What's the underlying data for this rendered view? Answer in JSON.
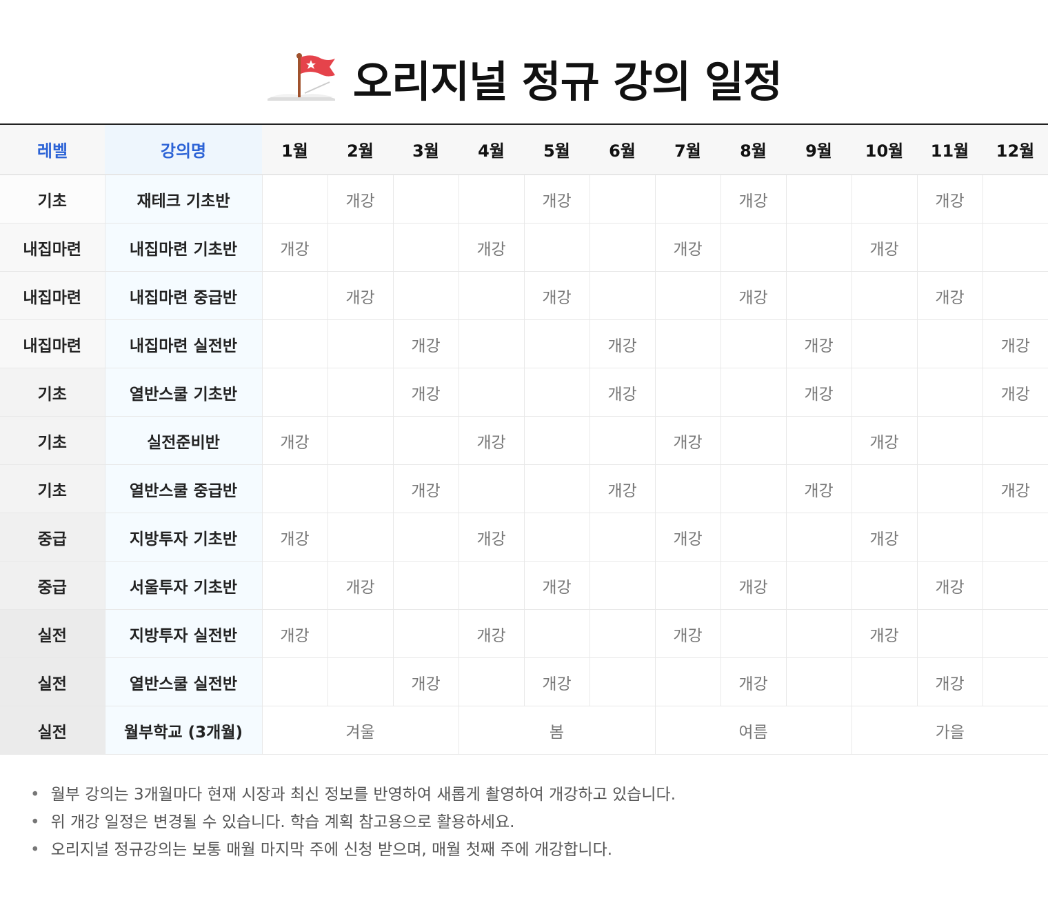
{
  "title": {
    "icon": "flag-on-book-icon",
    "text": "오리지널 정규 강의 일정"
  },
  "colors": {
    "header_accent": "#2c63d6",
    "course_bg": "#f5fbff"
  },
  "table": {
    "headers": {
      "level": "레벨",
      "course": "강의명",
      "months": [
        "1월",
        "2월",
        "3월",
        "4월",
        "5월",
        "6월",
        "7월",
        "8월",
        "9월",
        "10월",
        "11월",
        "12월"
      ]
    },
    "rows": [
      {
        "level": "기초",
        "course": "재테크 기초반",
        "cells": [
          "",
          "개강",
          "",
          "",
          "개강",
          "",
          "",
          "개강",
          "",
          "",
          "개강",
          ""
        ],
        "level_bg": "#fcfcfc"
      },
      {
        "level": "내집마련",
        "course": "내집마련 기초반",
        "cells": [
          "개강",
          "",
          "",
          "개강",
          "",
          "",
          "개강",
          "",
          "",
          "개강",
          "",
          ""
        ],
        "level_bg": "#f8f8f8"
      },
      {
        "level": "내집마련",
        "course": "내집마련 중급반",
        "cells": [
          "",
          "개강",
          "",
          "",
          "개강",
          "",
          "",
          "개강",
          "",
          "",
          "개강",
          ""
        ],
        "level_bg": "#f8f8f8"
      },
      {
        "level": "내집마련",
        "course": "내집마련 실전반",
        "cells": [
          "",
          "",
          "개강",
          "",
          "",
          "개강",
          "",
          "",
          "개강",
          "",
          "",
          "개강"
        ],
        "level_bg": "#f8f8f8"
      },
      {
        "level": "기초",
        "course": "열반스쿨 기초반",
        "cells": [
          "",
          "",
          "개강",
          "",
          "",
          "개강",
          "",
          "",
          "개강",
          "",
          "",
          "개강"
        ],
        "level_bg": "#f3f3f3"
      },
      {
        "level": "기초",
        "course": "실전준비반",
        "cells": [
          "개강",
          "",
          "",
          "개강",
          "",
          "",
          "개강",
          "",
          "",
          "개강",
          "",
          ""
        ],
        "level_bg": "#f3f3f3"
      },
      {
        "level": "기초",
        "course": "열반스쿨 중급반",
        "cells": [
          "",
          "",
          "개강",
          "",
          "",
          "개강",
          "",
          "",
          "개강",
          "",
          "",
          "개강"
        ],
        "level_bg": "#f3f3f3"
      },
      {
        "level": "중급",
        "course": "지방투자 기초반",
        "cells": [
          "개강",
          "",
          "",
          "개강",
          "",
          "",
          "개강",
          "",
          "",
          "개강",
          "",
          ""
        ],
        "level_bg": "#f0f0f0"
      },
      {
        "level": "중급",
        "course": "서울투자 기초반",
        "cells": [
          "",
          "개강",
          "",
          "",
          "개강",
          "",
          "",
          "개강",
          "",
          "",
          "개강",
          ""
        ],
        "level_bg": "#f0f0f0"
      },
      {
        "level": "실전",
        "course": "지방투자 실전반",
        "cells": [
          "개강",
          "",
          "",
          "개강",
          "",
          "",
          "개강",
          "",
          "",
          "개강",
          "",
          ""
        ],
        "level_bg": "#ebebeb"
      },
      {
        "level": "실전",
        "course": "열반스쿨 실전반",
        "cells": [
          "",
          "",
          "개강",
          "",
          "개강",
          "",
          "",
          "개강",
          "",
          "",
          "개강",
          ""
        ],
        "level_bg": "#ebebeb"
      },
      {
        "level": "실전",
        "course": "월부학교 (3개월)",
        "seasons": [
          "겨울",
          "봄",
          "여름",
          "가을"
        ],
        "level_bg": "#ebebeb"
      }
    ]
  },
  "notes": [
    "월부 강의는 3개월마다 현재 시장과 최신 정보를 반영하여 새롭게 촬영하여 개강하고 있습니다.",
    "위 개강 일정은 변경될 수 있습니다. 학습 계획 참고용으로 활용하세요.",
    "오리지널 정규강의는 보통 매월 마지막 주에 신청 받으며, 매월 첫째 주에 개강합니다."
  ]
}
